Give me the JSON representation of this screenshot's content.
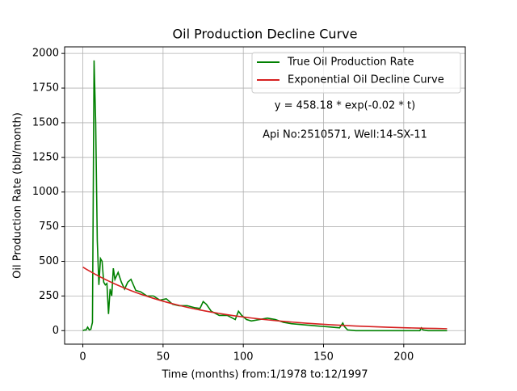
{
  "chart_data": {
    "type": "line",
    "title": "Oil Production Decline Curve",
    "xlabel": "Time (months) from:1/1978 to:12/1997",
    "ylabel": "Oil Production Rate (bbl/month)",
    "annotations": [
      "y = 458.18 * exp(-0.02 * t)",
      "Api No:2510571, Well:14-SX-11"
    ],
    "x": [
      0,
      1,
      2,
      3,
      4,
      5,
      6,
      7,
      8,
      9,
      10,
      11,
      12,
      13,
      14,
      15,
      16,
      17,
      18,
      19,
      20,
      22,
      24,
      26,
      28,
      30,
      33,
      36,
      40,
      44,
      48,
      52,
      56,
      60,
      65,
      70,
      73,
      75,
      77,
      80,
      85,
      90,
      95,
      97,
      99,
      102,
      105,
      110,
      115,
      120,
      125,
      130,
      135,
      140,
      145,
      150,
      155,
      160,
      162,
      163,
      165,
      170,
      180,
      190,
      200,
      210,
      211,
      212,
      215,
      220,
      227
    ],
    "series": [
      {
        "name": "True Oil Production Rate",
        "color": "#008000",
        "values": [
          0,
          5,
          5,
          25,
          5,
          10,
          60,
          1950,
          1500,
          650,
          330,
          520,
          500,
          350,
          330,
          340,
          120,
          300,
          250,
          450,
          370,
          420,
          350,
          300,
          350,
          370,
          290,
          280,
          250,
          250,
          220,
          230,
          190,
          180,
          180,
          165,
          160,
          210,
          190,
          140,
          110,
          110,
          80,
          140,
          110,
          80,
          70,
          80,
          90,
          80,
          60,
          50,
          45,
          40,
          35,
          30,
          25,
          20,
          55,
          30,
          5,
          0,
          0,
          0,
          0,
          0,
          20,
          5,
          0,
          0,
          0
        ]
      },
      {
        "name": "Exponential Oil Decline Curve",
        "color": "#d62020",
        "values": [
          458.2,
          451.2,
          444.3,
          437.5,
          430.8,
          424.3,
          417.8,
          411.4,
          405.1,
          398.9,
          392.8,
          386.8,
          380.9,
          375.1,
          369.4,
          363.7,
          358.2,
          352.7,
          347.3,
          342.0,
          336.8,
          326.6,
          316.7,
          307.1,
          297.8,
          288.8,
          275.8,
          263.4,
          247.7,
          232.9,
          219.0,
          205.9,
          193.6,
          182.1,
          168.6,
          156.1,
          149.1,
          144.6,
          140.2,
          133.9,
          124.0,
          114.8,
          106.3,
          103.1,
          99.9,
          95.4,
          91.1,
          84.4,
          78.1,
          72.3,
          67.0,
          62.0,
          57.4,
          53.2,
          49.2,
          45.6,
          42.2,
          39.1,
          37.9,
          37.3,
          36.2,
          33.5,
          28.7,
          24.6,
          21.1,
          18.1,
          17.8,
          17.5,
          16.8,
          15.5,
          14.0
        ]
      }
    ],
    "xlim": [
      -11.35,
      238.35
    ],
    "ylim": [
      -97.5,
      2047.5
    ],
    "xticks": [
      0,
      50,
      100,
      150,
      200
    ],
    "yticks": [
      0,
      250,
      500,
      750,
      1000,
      1250,
      1500,
      1750,
      2000
    ],
    "grid": true,
    "legend": "upper right"
  }
}
